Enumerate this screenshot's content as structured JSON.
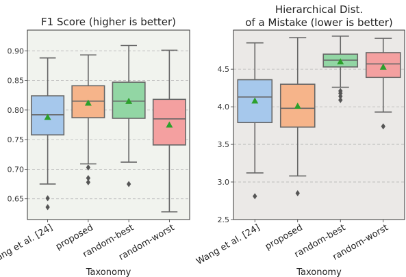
{
  "chart_data": [
    {
      "type": "box",
      "title": "F1 Score (higher is better)",
      "xlabel": "Taxonomy",
      "ylabel": "",
      "ylim": [
        0.615,
        0.935
      ],
      "yticks": [
        "0.65",
        "0.70",
        "0.75",
        "0.80",
        "0.85",
        "0.90"
      ],
      "ytick_values": [
        0.65,
        0.7,
        0.75,
        0.8,
        0.85,
        0.9
      ],
      "grid": "horizontal dashed",
      "background": "#f1f3ee",
      "categories": [
        "Wang et al. [24]",
        "proposed",
        "random-best",
        "random-worst"
      ],
      "colors": [
        "#a6c8ec",
        "#f6b48a",
        "#92d6a4",
        "#f4a0a0"
      ],
      "mean_color": "#2ca02c",
      "boxes": [
        {
          "whislo": 0.675,
          "q1": 0.758,
          "med": 0.792,
          "q3": 0.824,
          "whishi": 0.888,
          "mean": 0.788,
          "fliers": [
            0.651,
            0.636
          ]
        },
        {
          "whislo": 0.709,
          "q1": 0.787,
          "med": 0.815,
          "q3": 0.841,
          "whishi": 0.893,
          "mean": 0.812,
          "fliers": [
            0.703,
            0.685,
            0.678
          ]
        },
        {
          "whislo": 0.712,
          "q1": 0.786,
          "med": 0.815,
          "q3": 0.847,
          "whishi": 0.909,
          "mean": 0.815,
          "fliers": [
            0.675
          ]
        },
        {
          "whislo": 0.628,
          "q1": 0.741,
          "med": 0.785,
          "q3": 0.818,
          "whishi": 0.901,
          "mean": 0.775,
          "fliers": []
        }
      ]
    },
    {
      "type": "box",
      "title": "Hierarchical Dist.\nof a Mistake (lower is better)",
      "title_lines": [
        "Hierarchical Dist.",
        "of a Mistake (lower is better)"
      ],
      "xlabel": "Taxonomy",
      "ylabel": "",
      "ylim": [
        2.5,
        5.02
      ],
      "yticks": [
        "2.5",
        "3.0",
        "3.5",
        "4.0",
        "4.5"
      ],
      "ytick_values": [
        2.5,
        3.0,
        3.5,
        4.0,
        4.5
      ],
      "grid": "horizontal dashed",
      "background": "#ebe9e7",
      "categories": [
        "Wang et al. [24]",
        "proposed",
        "random-best",
        "random-worst"
      ],
      "colors": [
        "#a6c8ec",
        "#f6b48a",
        "#92d6a4",
        "#f4a0a0"
      ],
      "mean_color": "#2ca02c",
      "boxes": [
        {
          "whislo": 3.12,
          "q1": 3.79,
          "med": 4.13,
          "q3": 4.36,
          "whishi": 4.85,
          "mean": 4.08,
          "fliers": [
            2.81
          ]
        },
        {
          "whislo": 3.08,
          "q1": 3.73,
          "med": 3.98,
          "q3": 4.3,
          "whishi": 4.92,
          "mean": 4.01,
          "fliers": [
            2.85
          ]
        },
        {
          "whislo": 4.26,
          "q1": 4.53,
          "med": 4.62,
          "q3": 4.7,
          "whishi": 4.94,
          "mean": 4.6,
          "fliers": [
            4.21,
            4.18,
            4.14,
            4.09
          ]
        },
        {
          "whislo": 3.93,
          "q1": 4.39,
          "med": 4.57,
          "q3": 4.72,
          "whishi": 4.91,
          "mean": 4.53,
          "fliers": [
            3.74
          ]
        }
      ]
    }
  ]
}
